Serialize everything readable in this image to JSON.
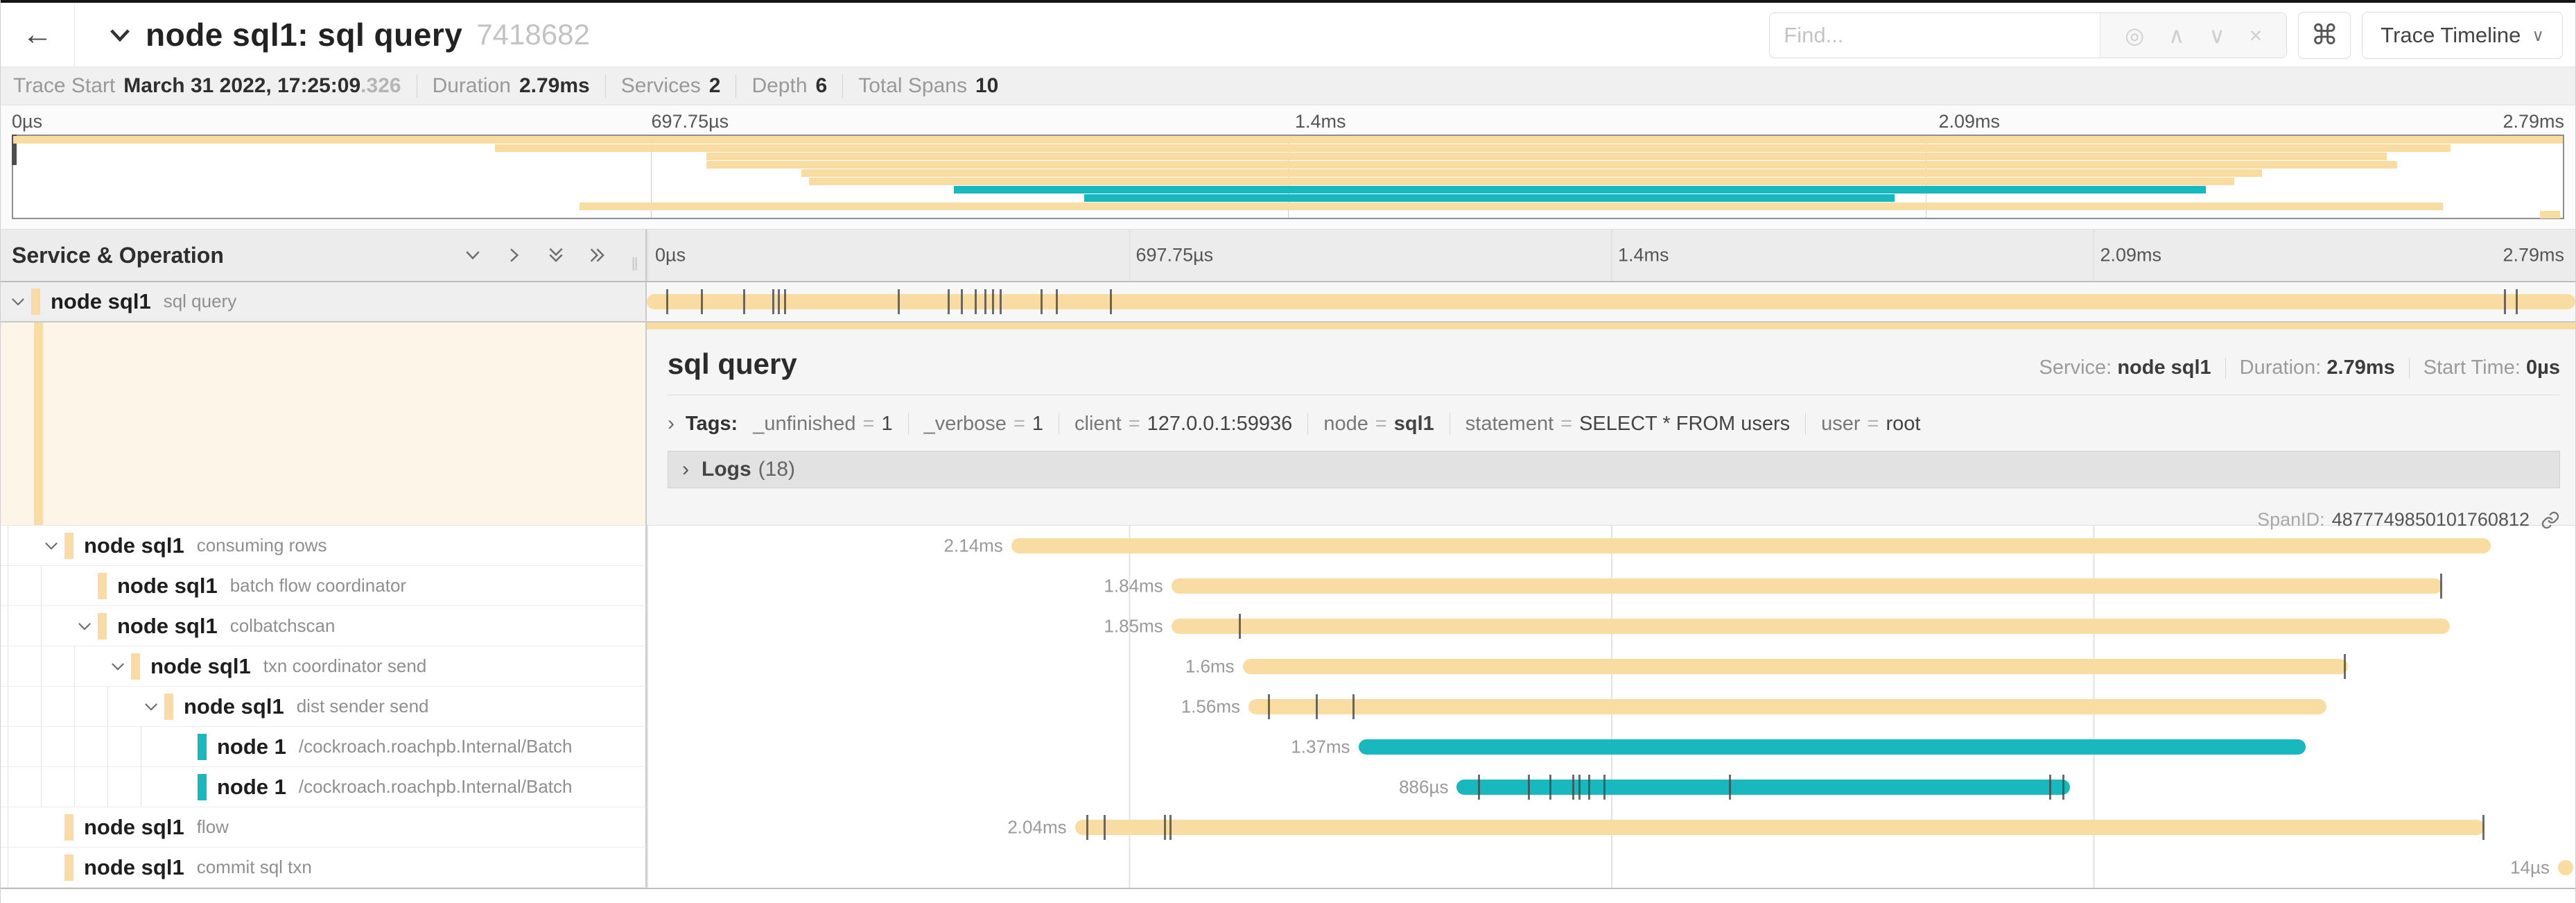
{
  "icons": {
    "back": "←",
    "command": "⌘",
    "target": "◎",
    "up_arrow": "∧",
    "down_arrow": "∨",
    "close": "×",
    "grip": "‖",
    "chevron_right": "›"
  },
  "header": {
    "title": "node sql1: sql query",
    "trace_id": "7418682",
    "find_placeholder": "Find...",
    "view_selector_label": "Trace Timeline"
  },
  "trace_meta": {
    "trace_start_label": "Trace Start",
    "trace_start_value": "March 31 2022, 17:25:09",
    "trace_start_fraction": ".326",
    "duration_label": "Duration",
    "duration_value": "2.79ms",
    "services_label": "Services",
    "services_value": "2",
    "depth_label": "Depth",
    "depth_value": "6",
    "total_spans_label": "Total Spans",
    "total_spans_value": "10"
  },
  "timeline": {
    "ticks": [
      "0µs",
      "697.75µs",
      "1.4ms",
      "2.09ms",
      "2.79ms"
    ]
  },
  "tree_header": {
    "title": "Service & Operation"
  },
  "colors": {
    "tan": "#F8DCA1",
    "teal": "#17B8BE"
  },
  "detail": {
    "title": "sql query",
    "service_label": "Service:",
    "service_value": "node sql1",
    "duration_label": "Duration:",
    "duration_value": "2.79ms",
    "start_time_label": "Start Time:",
    "start_time_value": "0µs",
    "tags_label": "Tags:",
    "tags": [
      {
        "key": "_unfinished",
        "value": "1",
        "bold": false
      },
      {
        "key": "_verbose",
        "value": "1",
        "bold": false
      },
      {
        "key": "client",
        "value": "127.0.0.1:59936",
        "bold": false
      },
      {
        "key": "node",
        "value": "sql1",
        "bold": true
      },
      {
        "key": "statement",
        "value": "SELECT * FROM users",
        "bold": false
      },
      {
        "key": "user",
        "value": "root",
        "bold": false
      }
    ],
    "logs_label": "Logs",
    "logs_count": "(18)",
    "span_id_label": "SpanID:",
    "span_id_value": "4877749850101760812"
  },
  "spans": [
    {
      "service": "node sql1",
      "operation": "sql query",
      "level": 0,
      "chevron": true,
      "color": "#F8DCA1",
      "start_pct": 0,
      "width_pct": 100,
      "duration": "2.79ms",
      "show_label": false,
      "selected": true,
      "ticks_pct": [
        1.0,
        2.8,
        5.0,
        6.5,
        6.8,
        7.1,
        13.0,
        15.6,
        16.3,
        17.0,
        17.5,
        17.9,
        18.3,
        20.4,
        21.2,
        24.0,
        96.3,
        96.9
      ]
    },
    {
      "service": "node sql1",
      "operation": "consuming rows",
      "level": 1,
      "chevron": true,
      "color": "#F8DCA1",
      "start_pct": 18.9,
      "width_pct": 76.7,
      "duration": "2.14ms",
      "show_label": true,
      "ticks_pct": []
    },
    {
      "service": "node sql1",
      "operation": "batch flow coordinator",
      "level": 2,
      "chevron": false,
      "color": "#F8DCA1",
      "start_pct": 27.2,
      "width_pct": 65.9,
      "duration": "1.84ms",
      "show_label": true,
      "ticks_pct": [
        93.0
      ]
    },
    {
      "service": "node sql1",
      "operation": "colbatchscan",
      "level": 2,
      "chevron": true,
      "color": "#F8DCA1",
      "start_pct": 27.2,
      "width_pct": 66.3,
      "duration": "1.85ms",
      "show_label": true,
      "ticks_pct": [
        30.7
      ]
    },
    {
      "service": "node sql1",
      "operation": "txn coordinator send",
      "level": 3,
      "chevron": true,
      "color": "#F8DCA1",
      "start_pct": 30.9,
      "width_pct": 57.3,
      "duration": "1.6ms",
      "show_label": true,
      "ticks_pct": [
        88.0
      ]
    },
    {
      "service": "node sql1",
      "operation": "dist sender send",
      "level": 4,
      "chevron": true,
      "color": "#F8DCA1",
      "start_pct": 31.2,
      "width_pct": 55.9,
      "duration": "1.56ms",
      "show_label": true,
      "ticks_pct": [
        32.2,
        34.7,
        36.6
      ]
    },
    {
      "service": "node 1",
      "operation": "/cockroach.roachpb.Internal/Batch",
      "level": 5,
      "chevron": false,
      "color": "#17B8BE",
      "start_pct": 36.9,
      "width_pct": 49.1,
      "duration": "1.37ms",
      "show_label": true,
      "ticks_pct": []
    },
    {
      "service": "node 1",
      "operation": "/cockroach.roachpb.Internal/Batch",
      "level": 5,
      "chevron": false,
      "color": "#17B8BE",
      "start_pct": 42.0,
      "width_pct": 31.8,
      "duration": "886µs",
      "show_label": true,
      "ticks_pct": [
        43.1,
        45.7,
        46.8,
        48.0,
        48.3,
        48.8,
        49.6,
        56.1,
        72.7,
        73.4
      ]
    },
    {
      "service": "node sql1",
      "operation": "flow",
      "level": 1,
      "chevron": false,
      "color": "#F8DCA1",
      "start_pct": 22.2,
      "width_pct": 73.1,
      "duration": "2.04ms",
      "show_label": true,
      "ticks_pct": [
        22.8,
        23.7,
        26.8,
        27.1,
        95.2
      ]
    },
    {
      "service": "node sql1",
      "operation": "commit sql txn",
      "level": 1,
      "chevron": false,
      "color": "#F8DCA1",
      "start_pct": 99.1,
      "width_pct": 0.8,
      "duration": "14µs",
      "show_label": true,
      "ticks_pct": []
    }
  ]
}
